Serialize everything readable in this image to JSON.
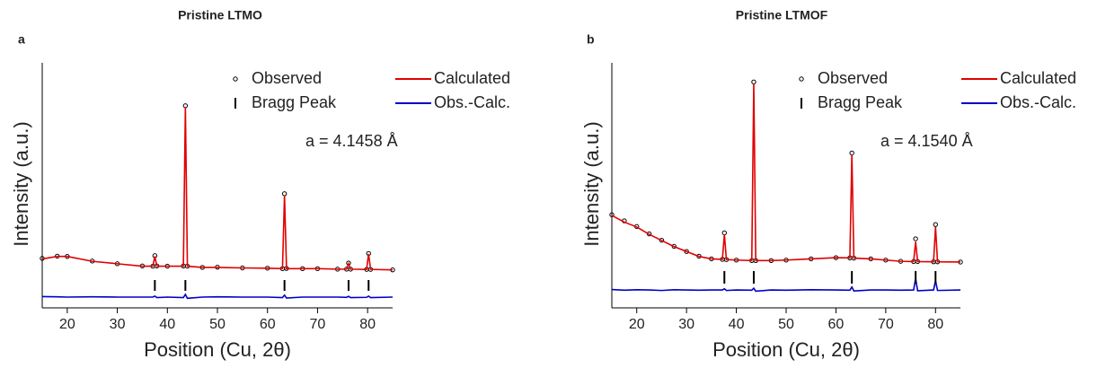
{
  "chart_data": [
    {
      "type": "line",
      "title": "Pristine LTMO",
      "panel": "a",
      "x_label": "Position (Cu, 2θ)",
      "y_label": "Intensity (a.u.)",
      "annotation": "a = 4.1458 Å",
      "xlim": [
        15,
        85
      ],
      "xticks": [
        20,
        30,
        40,
        50,
        60,
        70,
        80
      ],
      "ylim": [
        0,
        100
      ],
      "x": [
        15,
        18,
        20,
        25,
        30,
        35,
        37.1,
        37.5,
        37.9,
        40,
        43.2,
        43.6,
        44.0,
        47,
        50,
        55,
        60,
        63.0,
        63.4,
        63.8,
        67,
        70,
        74,
        75.8,
        76.2,
        76.6,
        79.8,
        80.2,
        80.6,
        85
      ],
      "series": [
        {
          "name": "Observed",
          "color": "#000000",
          "style": "markers",
          "values": [
            20.2,
            21.1,
            21,
            19.1,
            18,
            17.1,
            17,
            21.3,
            17.1,
            17,
            17.1,
            82.5,
            17,
            16.5,
            16.6,
            16.3,
            16.2,
            16,
            46.6,
            16.1,
            16,
            16,
            15.8,
            15.8,
            18.3,
            15.8,
            15.7,
            22.2,
            15.7,
            15.5
          ]
        },
        {
          "name": "Calculated",
          "color": "#e00000",
          "style": "line",
          "values": [
            20,
            21,
            21,
            19,
            18,
            17,
            17,
            21,
            17,
            17,
            17,
            82,
            17,
            16.5,
            16.5,
            16.3,
            16.2,
            16,
            46,
            16,
            16,
            16,
            15.8,
            15.8,
            18,
            15.8,
            15.7,
            22,
            15.7,
            15.5
          ]
        },
        {
          "name": "Obs.-Calc.",
          "color": "#0000c8",
          "style": "line",
          "values": [
            4.6,
            4.5,
            4.4,
            4.5,
            4.4,
            4.4,
            4.4,
            4.8,
            4.2,
            4.4,
            4.2,
            5.5,
            3.9,
            4.4,
            4.5,
            4.4,
            4.4,
            4.2,
            5.2,
            4.0,
            4.4,
            4.4,
            4.4,
            4.3,
            4.7,
            4.2,
            4.3,
            4.8,
            4.2,
            4.4
          ]
        }
      ],
      "bragg_peaks": {
        "name": "Bragg Peak",
        "color": "#000000",
        "x": [
          37.5,
          43.6,
          63.4,
          76.2,
          80.2
        ]
      }
    },
    {
      "type": "line",
      "title": "Pristine LTMOF",
      "panel": "b",
      "x_label": "Position (Cu, 2θ)",
      "y_label": "Intensity (a.u.)",
      "annotation": "a = 4.1540 Å",
      "xlim": [
        15,
        85
      ],
      "xticks": [
        20,
        30,
        40,
        50,
        60,
        70,
        80
      ],
      "ylim": [
        0,
        100
      ],
      "x": [
        15,
        17.5,
        20,
        22.5,
        25,
        27.5,
        30,
        32.5,
        35,
        37.2,
        37.6,
        38.0,
        40,
        43.1,
        43.5,
        43.9,
        47,
        50,
        55,
        60,
        62.8,
        63.2,
        63.6,
        67,
        70,
        73,
        75.6,
        76.0,
        76.4,
        79.6,
        80.0,
        80.4,
        85
      ],
      "series": [
        {
          "name": "Observed",
          "color": "#000000",
          "style": "markers",
          "values": [
            38,
            35.5,
            33.2,
            30.2,
            27.6,
            25.1,
            23,
            21.1,
            20,
            19.8,
            30.6,
            19.7,
            19.5,
            19.3,
            92.2,
            19.3,
            19.3,
            19.5,
            20,
            20.5,
            20.4,
            63.2,
            20.3,
            20,
            19.5,
            19,
            18.9,
            28.2,
            18.9,
            18.8,
            34,
            18.8,
            18.7
          ]
        },
        {
          "name": "Calculated",
          "color": "#e00000",
          "style": "line",
          "values": [
            37.7,
            35,
            33,
            30,
            27.5,
            25,
            23,
            21,
            20,
            19.8,
            30,
            19.7,
            19.5,
            19.3,
            91.6,
            19.3,
            19.3,
            19.5,
            20,
            20.5,
            20.4,
            62.6,
            20.3,
            20,
            19.5,
            19,
            18.9,
            27,
            18.9,
            18.8,
            33,
            18.8,
            18.7
          ]
        },
        {
          "name": "Obs.-Calc.",
          "color": "#0000c8",
          "style": "line",
          "values": [
            7.5,
            7.2,
            7.4,
            7.3,
            7.1,
            7.4,
            7.3,
            7.2,
            7.3,
            7.3,
            7.8,
            7.1,
            7.3,
            7.2,
            8,
            6.8,
            7.3,
            7.2,
            7.4,
            7.3,
            7.2,
            8.5,
            6.9,
            7.3,
            7.3,
            7.2,
            7.3,
            12,
            7.0,
            7.3,
            11,
            7.1,
            7.3
          ]
        }
      ],
      "bragg_peaks": {
        "name": "Bragg Peak",
        "color": "#000000",
        "x": [
          37.6,
          43.5,
          63.2,
          76.0,
          80.0
        ]
      }
    }
  ]
}
